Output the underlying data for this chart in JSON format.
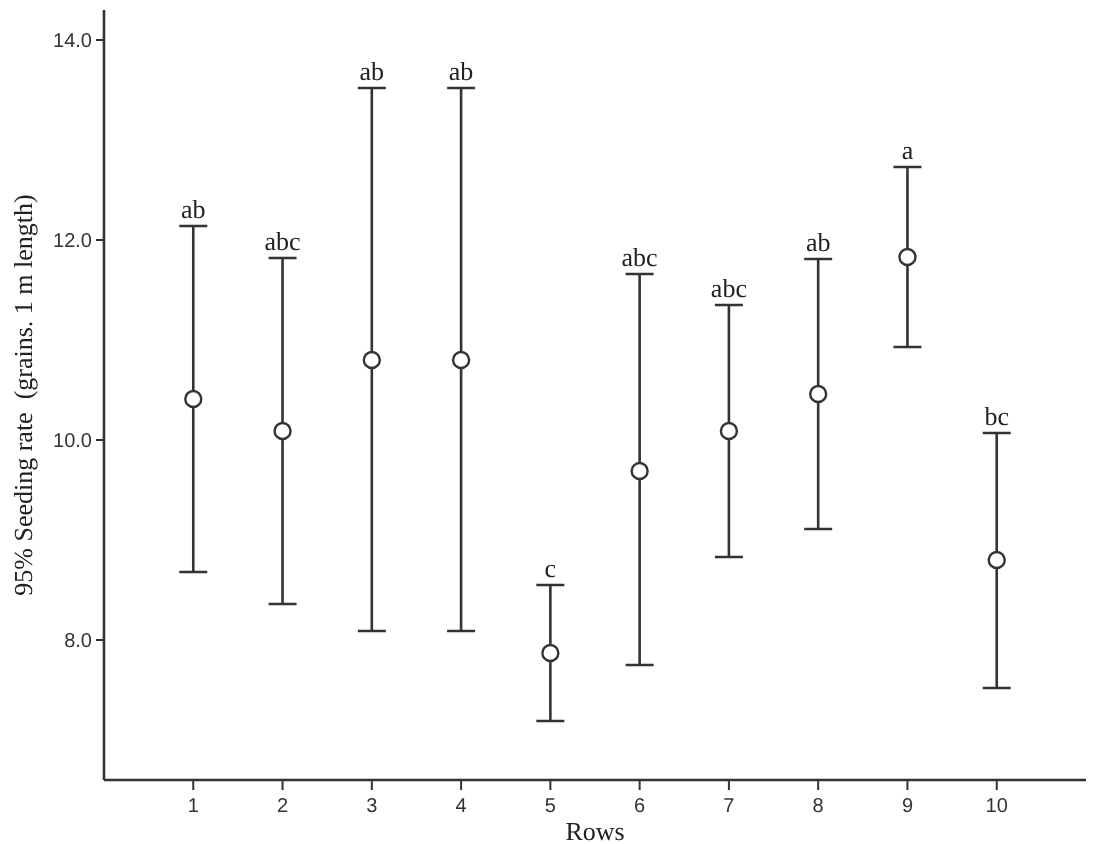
{
  "chart_data": {
    "type": "scatter",
    "xlabel": "Rows",
    "ylabel": "95% Seeding rate  (grains. 1 m length)",
    "x": [
      1,
      2,
      3,
      4,
      5,
      6,
      7,
      8,
      9,
      10
    ],
    "xlim": [
      0,
      11
    ],
    "xticks": [
      1,
      2,
      3,
      4,
      5,
      6,
      7,
      8,
      9,
      10
    ],
    "ylim": [
      6.6,
      14.3
    ],
    "yticks": [
      {
        "value": 8,
        "label": "8.0"
      },
      {
        "value": 10,
        "label": "10.0"
      },
      {
        "value": 12,
        "label": "12.0"
      },
      {
        "value": 14,
        "label": "14.0"
      }
    ],
    "series": [
      {
        "color": "#333333",
        "values": [
          10.41,
          10.09,
          10.8,
          10.8,
          7.87,
          9.69,
          10.09,
          10.46,
          11.83,
          8.8
        ],
        "errors": [
          [
            8.68,
            12.14
          ],
          [
            8.36,
            11.82
          ],
          [
            8.09,
            13.52
          ],
          [
            8.09,
            13.52
          ],
          [
            7.19,
            8.55
          ],
          [
            7.75,
            11.66
          ],
          [
            8.83,
            11.35
          ],
          [
            9.11,
            11.81
          ],
          [
            10.93,
            12.73
          ],
          [
            7.52,
            10.07
          ]
        ]
      }
    ],
    "marker": "circle",
    "grid": false,
    "annotations": [
      {
        "text": "ab",
        "x": 1,
        "y": 12.14
      },
      {
        "text": "abc",
        "x": 2,
        "y": 11.82
      },
      {
        "text": "ab",
        "x": 3,
        "y": 13.52
      },
      {
        "text": "ab",
        "x": 4,
        "y": 13.52
      },
      {
        "text": "c",
        "x": 5,
        "y": 8.55
      },
      {
        "text": "abc",
        "x": 6,
        "y": 11.66
      },
      {
        "text": "abc",
        "x": 7,
        "y": 11.35
      },
      {
        "text": "ab",
        "x": 8,
        "y": 11.81
      },
      {
        "text": "a",
        "x": 9,
        "y": 12.73
      },
      {
        "text": "bc",
        "x": 10,
        "y": 10.07
      }
    ]
  }
}
